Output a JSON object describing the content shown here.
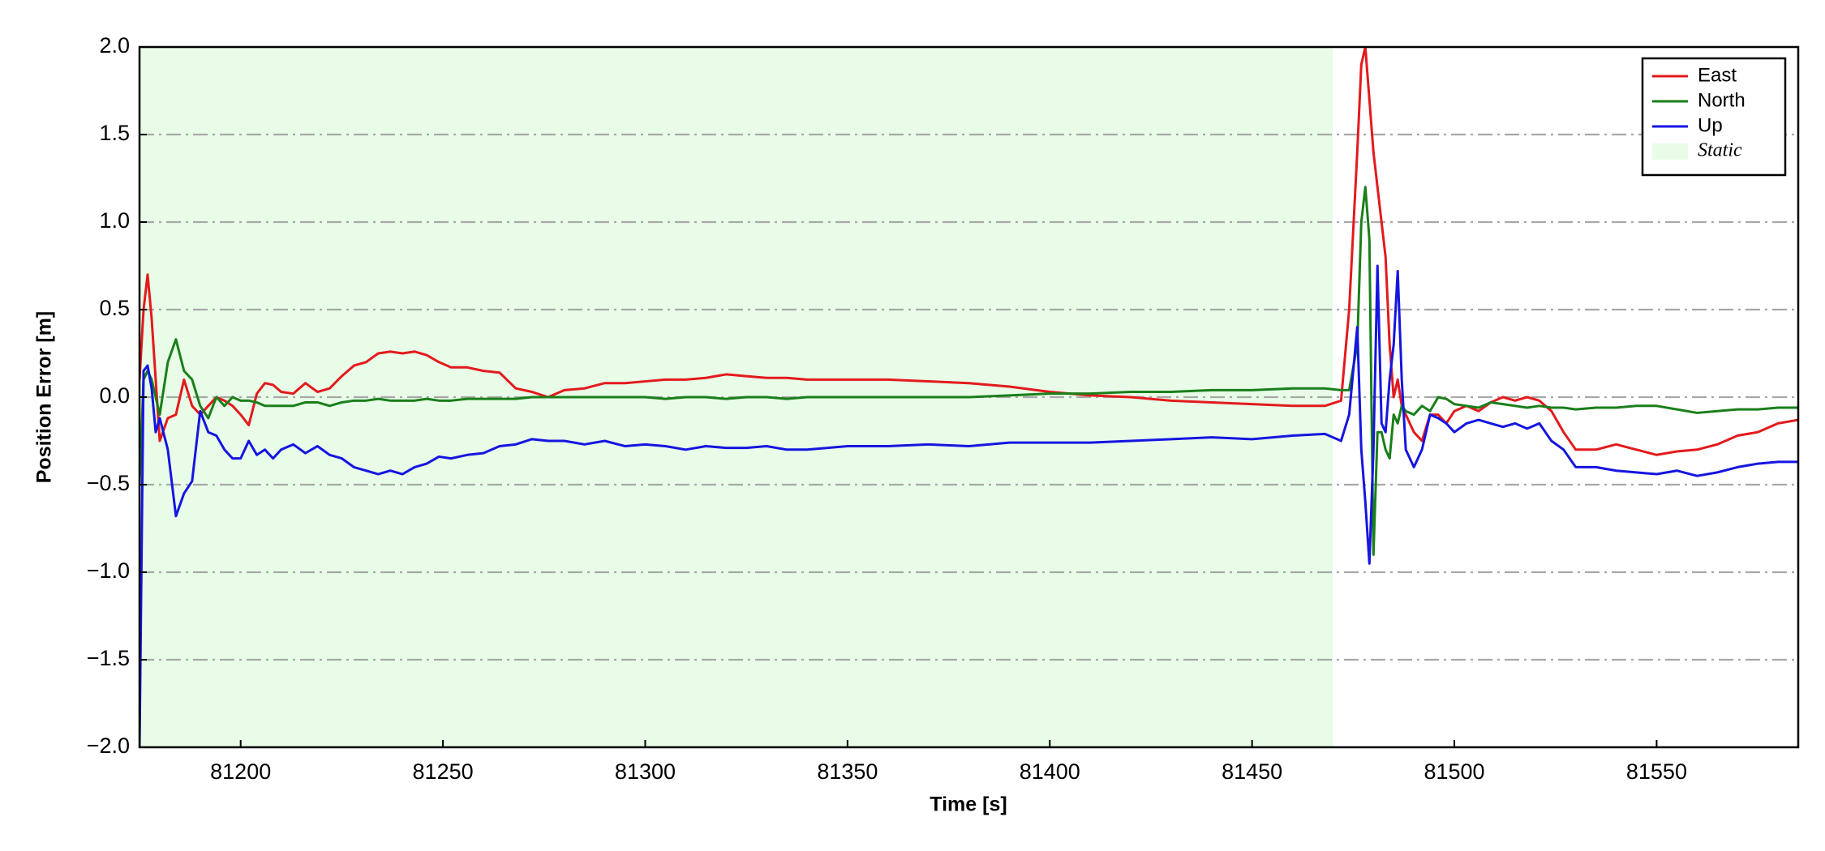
{
  "chart_data": {
    "type": "line",
    "xlabel": "Time [s]",
    "ylabel": "Position Error [m]",
    "xlim": [
      81175,
      81585
    ],
    "xticks": [
      81200,
      81250,
      81300,
      81350,
      81400,
      81450,
      81500,
      81550
    ],
    "ylim": [
      -2,
      2
    ],
    "yticks": [
      {
        "value": -2,
        "label": "−2.0"
      },
      {
        "value": -1.5,
        "label": "−1.5"
      },
      {
        "value": -1,
        "label": "−1.0"
      },
      {
        "value": -0.5,
        "label": "−0.5"
      },
      {
        "value": 0,
        "label": "0.0"
      },
      0.5,
      {
        "value": 1,
        "label": "1.0"
      },
      1.5,
      {
        "value": 2,
        "label": "2.0"
      }
    ],
    "grid": "y",
    "legend": "upper right",
    "shade": {
      "name": "Static",
      "color": "#e8fce8",
      "xrange": [
        81175,
        81470
      ]
    },
    "x": [
      81175,
      81176,
      81177,
      81178,
      81179,
      81180,
      81182,
      81184,
      81186,
      81188,
      81190,
      81192,
      81194,
      81196,
      81198,
      81200,
      81202,
      81204,
      81206,
      81208,
      81210,
      81213,
      81216,
      81219,
      81222,
      81225,
      81228,
      81231,
      81234,
      81237,
      81240,
      81243,
      81246,
      81249,
      81252,
      81256,
      81260,
      81264,
      81268,
      81272,
      81276,
      81280,
      81285,
      81290,
      81295,
      81300,
      81305,
      81310,
      81315,
      81320,
      81325,
      81330,
      81335,
      81340,
      81350,
      81360,
      81370,
      81380,
      81390,
      81400,
      81410,
      81420,
      81430,
      81440,
      81450,
      81460,
      81468,
      81472,
      81474,
      81476,
      81477,
      81478,
      81479,
      81480,
      81481,
      81482,
      81483,
      81484,
      81485,
      81486,
      81487,
      81488,
      81490,
      81492,
      81494,
      81496,
      81498,
      81500,
      81503,
      81506,
      81509,
      81512,
      81515,
      81518,
      81521,
      81524,
      81527,
      81530,
      81535,
      81540,
      81545,
      81550,
      81555,
      81560,
      81565,
      81570,
      81575,
      81580,
      81585
    ],
    "series": [
      {
        "name": "East",
        "color": "#e31a1c",
        "values": [
          0.1,
          0.5,
          0.7,
          0.45,
          0.1,
          -0.25,
          -0.12,
          -0.1,
          0.1,
          -0.05,
          -0.1,
          -0.05,
          0.0,
          -0.02,
          -0.05,
          -0.1,
          -0.16,
          0.02,
          0.08,
          0.07,
          0.03,
          0.02,
          0.08,
          0.03,
          0.05,
          0.12,
          0.18,
          0.2,
          0.25,
          0.26,
          0.25,
          0.26,
          0.24,
          0.2,
          0.17,
          0.17,
          0.15,
          0.14,
          0.05,
          0.03,
          0.0,
          0.04,
          0.05,
          0.08,
          0.08,
          0.09,
          0.1,
          0.1,
          0.11,
          0.13,
          0.12,
          0.11,
          0.11,
          0.1,
          0.1,
          0.1,
          0.09,
          0.08,
          0.06,
          0.03,
          0.01,
          0.0,
          -0.02,
          -0.03,
          -0.04,
          -0.05,
          -0.05,
          -0.02,
          0.5,
          1.4,
          1.9,
          2.0,
          1.7,
          1.4,
          1.2,
          1.0,
          0.8,
          0.3,
          0.0,
          0.1,
          -0.05,
          -0.1,
          -0.2,
          -0.25,
          -0.1,
          -0.1,
          -0.15,
          -0.08,
          -0.05,
          -0.08,
          -0.03,
          0.0,
          -0.02,
          0.0,
          -0.02,
          -0.08,
          -0.2,
          -0.3,
          -0.3,
          -0.27,
          -0.3,
          -0.33,
          -0.31,
          -0.3,
          -0.27,
          -0.22,
          -0.2,
          -0.15,
          -0.13
        ]
      },
      {
        "name": "North",
        "color": "#1a7f1a",
        "values": [
          -0.5,
          0.1,
          0.15,
          0.1,
          0.0,
          -0.1,
          0.2,
          0.33,
          0.15,
          0.1,
          -0.05,
          -0.12,
          0.0,
          -0.05,
          0.0,
          -0.02,
          -0.02,
          -0.03,
          -0.05,
          -0.05,
          -0.05,
          -0.05,
          -0.03,
          -0.03,
          -0.05,
          -0.03,
          -0.02,
          -0.02,
          -0.01,
          -0.02,
          -0.02,
          -0.02,
          -0.01,
          -0.02,
          -0.02,
          -0.01,
          -0.01,
          -0.01,
          -0.01,
          0.0,
          0.0,
          0.0,
          0.0,
          0.0,
          0.0,
          0.0,
          -0.01,
          0.0,
          0.0,
          -0.01,
          0.0,
          0.0,
          -0.01,
          0.0,
          0.0,
          0.0,
          0.0,
          0.0,
          0.01,
          0.02,
          0.02,
          0.03,
          0.03,
          0.04,
          0.04,
          0.05,
          0.05,
          0.04,
          0.04,
          0.3,
          1.0,
          1.2,
          0.9,
          -0.9,
          -0.2,
          -0.2,
          -0.3,
          -0.35,
          -0.1,
          -0.15,
          -0.05,
          -0.08,
          -0.1,
          -0.05,
          -0.08,
          0.0,
          -0.01,
          -0.04,
          -0.05,
          -0.06,
          -0.03,
          -0.04,
          -0.05,
          -0.06,
          -0.05,
          -0.06,
          -0.06,
          -0.07,
          -0.06,
          -0.06,
          -0.05,
          -0.05,
          -0.07,
          -0.09,
          -0.08,
          -0.07,
          -0.07,
          -0.06,
          -0.06
        ]
      },
      {
        "name": "Up",
        "color": "#1515e0",
        "values": [
          -2,
          0.15,
          0.18,
          0.05,
          -0.2,
          -0.12,
          -0.3,
          -0.68,
          -0.55,
          -0.48,
          -0.08,
          -0.2,
          -0.22,
          -0.3,
          -0.35,
          -0.35,
          -0.25,
          -0.33,
          -0.3,
          -0.35,
          -0.3,
          -0.27,
          -0.32,
          -0.28,
          -0.33,
          -0.35,
          -0.4,
          -0.42,
          -0.44,
          -0.42,
          -0.44,
          -0.4,
          -0.38,
          -0.34,
          -0.35,
          -0.33,
          -0.32,
          -0.28,
          -0.27,
          -0.24,
          -0.25,
          -0.25,
          -0.27,
          -0.25,
          -0.28,
          -0.27,
          -0.28,
          -0.3,
          -0.28,
          -0.29,
          -0.29,
          -0.28,
          -0.3,
          -0.3,
          -0.28,
          -0.28,
          -0.27,
          -0.28,
          -0.26,
          -0.26,
          -0.26,
          -0.25,
          -0.24,
          -0.23,
          -0.24,
          -0.22,
          -0.21,
          -0.25,
          -0.1,
          0.4,
          -0.3,
          -0.6,
          -0.95,
          -0.3,
          0.75,
          -0.15,
          -0.2,
          0.1,
          0.3,
          0.72,
          0.1,
          -0.3,
          -0.4,
          -0.3,
          -0.1,
          -0.12,
          -0.15,
          -0.2,
          -0.15,
          -0.13,
          -0.15,
          -0.17,
          -0.15,
          -0.18,
          -0.15,
          -0.25,
          -0.3,
          -0.4,
          -0.4,
          -0.42,
          -0.43,
          -0.44,
          -0.42,
          -0.45,
          -0.43,
          -0.4,
          -0.38,
          -0.37,
          -0.37
        ]
      }
    ]
  }
}
